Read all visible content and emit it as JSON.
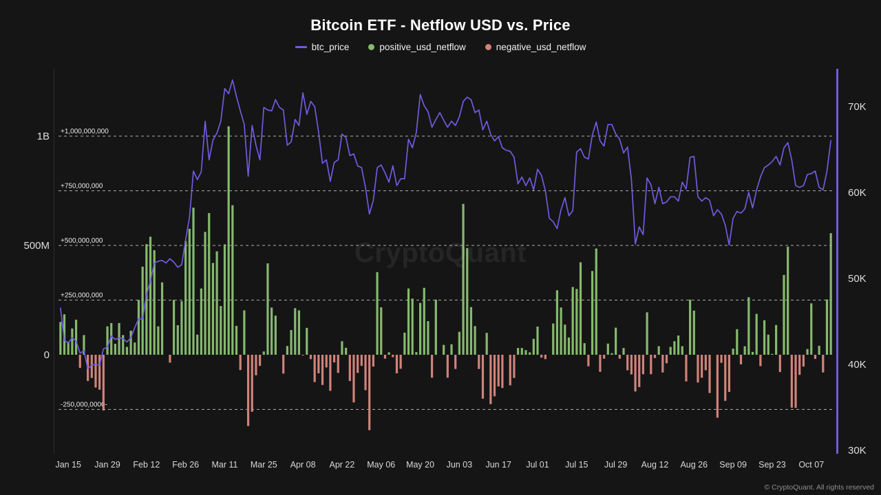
{
  "header": {
    "title": "Bitcoin ETF - Netflow USD vs. Price",
    "legend": [
      {
        "label": "btc_price",
        "color": "#6f5ce0",
        "marker": "line"
      },
      {
        "label": "positive_usd_netflow",
        "color": "#86b96e",
        "marker": "dot"
      },
      {
        "label": "negative_usd_netflow",
        "color": "#d0837a",
        "marker": "dot"
      }
    ]
  },
  "watermark": "CryptoQuant",
  "footer": {
    "copyright": "© CryptoQuant. All rights reserved"
  },
  "colors": {
    "background": "#151515",
    "price_line": "#6f5ce0",
    "positive_bar": "#86b96e",
    "negative_bar": "#d0837a",
    "grid_dash": "#e0e0e0",
    "axis_text": "#dcdcdc"
  },
  "chart_data": {
    "type": "mixed",
    "title": "Bitcoin ETF - Netflow USD vs. Price",
    "subtitle": "",
    "grid": "dashed horizontal reference lines",
    "legend_position": "top-center",
    "x_ticks": [
      {
        "i": 2,
        "label": "Jan 15"
      },
      {
        "i": 12,
        "label": "Jan 29"
      },
      {
        "i": 22,
        "label": "Feb 12"
      },
      {
        "i": 32,
        "label": "Feb 26"
      },
      {
        "i": 42,
        "label": "Mar 11"
      },
      {
        "i": 52,
        "label": "Mar 25"
      },
      {
        "i": 62,
        "label": "Apr 08"
      },
      {
        "i": 72,
        "label": "Apr 22"
      },
      {
        "i": 82,
        "label": "May 06"
      },
      {
        "i": 92,
        "label": "May 20"
      },
      {
        "i": 102,
        "label": "Jun 03"
      },
      {
        "i": 112,
        "label": "Jun 17"
      },
      {
        "i": 122,
        "label": "Jul 01"
      },
      {
        "i": 132,
        "label": "Jul 15"
      },
      {
        "i": 142,
        "label": "Jul 29"
      },
      {
        "i": 152,
        "label": "Aug 12"
      },
      {
        "i": 162,
        "label": "Aug 26"
      },
      {
        "i": 172,
        "label": "Sep 09"
      },
      {
        "i": 182,
        "label": "Sep 23"
      },
      {
        "i": 192,
        "label": "Oct 07"
      }
    ],
    "left_axis": {
      "big_labels": [
        {
          "value_m": 1000,
          "text": "1B"
        },
        {
          "value_m": 500,
          "text": "500M"
        },
        {
          "value_m": 0,
          "text": "0"
        }
      ],
      "ref_lines": [
        {
          "value_m": 1000,
          "label": "+1,000,000,000"
        },
        {
          "value_m": 750,
          "label": "+750,000,000"
        },
        {
          "value_m": 500,
          "label": "+500,000,000"
        },
        {
          "value_m": 250,
          "label": "+250,000,000"
        },
        {
          "value_m": -250,
          "label": "-250,000,0000-"
        }
      ],
      "unit": "USD netflow (millions)",
      "range_m": [
        -450,
        1310
      ]
    },
    "right_axis": {
      "ticks": [
        {
          "value_k": 70,
          "label": "70K"
        },
        {
          "value_k": 60,
          "label": "60K"
        },
        {
          "value_k": 50,
          "label": "50K"
        },
        {
          "value_k": 40,
          "label": "40K"
        },
        {
          "value_k": 30,
          "label": "30K"
        }
      ],
      "unit": "BTC price (USD)",
      "range_k": [
        29.6,
        74.4
      ]
    },
    "series": [
      {
        "name": "btc_price",
        "type": "line",
        "axis": "right",
        "color": "#6f5ce0",
        "unit": "K USD",
        "values": [
          46.6,
          42.8,
          42.5,
          43.1,
          42.7,
          41.3,
          41.6,
          39.5,
          39.9,
          40.0,
          39.9,
          41.8,
          42.0,
          43.3,
          42.9,
          43.1,
          43.0,
          42.6,
          43.1,
          44.3,
          45.3,
          45.3,
          48.1,
          49.7,
          51.8,
          52.0,
          52.1,
          51.8,
          52.3,
          51.9,
          51.3,
          51.6,
          54.5,
          57.1,
          62.5,
          61.5,
          62.4,
          68.3,
          63.8,
          66.1,
          66.9,
          68.3,
          72.1,
          71.5,
          73.1,
          71.2,
          69.5,
          67.9,
          61.9,
          67.8,
          65.5,
          63.8,
          69.9,
          69.6,
          69.5,
          70.8,
          69.9,
          69.6,
          65.5,
          65.9,
          68.5,
          67.8,
          71.6,
          69.1,
          70.6,
          70.0,
          67.1,
          63.4,
          63.8,
          61.3,
          63.5,
          63.8,
          66.8,
          66.4,
          64.3,
          64.5,
          63.1,
          62.9,
          60.6,
          57.5,
          59.1,
          62.9,
          63.2,
          62.3,
          61.2,
          63.1,
          60.8,
          61.6,
          61.6,
          66.2,
          65.2,
          67.0,
          71.4,
          70.1,
          69.4,
          67.6,
          68.5,
          69.3,
          68.4,
          67.6,
          68.3,
          67.8,
          68.8,
          70.6,
          71.1,
          70.8,
          69.3,
          69.6,
          67.3,
          68.3,
          66.8,
          66.0,
          66.5,
          65.2,
          64.9,
          64.8,
          64.1,
          61.0,
          61.8,
          60.8,
          61.7,
          60.3,
          62.7,
          62.0,
          60.2,
          57.0,
          56.6,
          55.8,
          58.0,
          59.4,
          57.3,
          57.9,
          64.7,
          65.1,
          64.1,
          63.9,
          66.7,
          68.2,
          66.0,
          65.4,
          67.9,
          67.9,
          66.8,
          66.2,
          64.6,
          65.3,
          61.5,
          54.0,
          56.0,
          55.1,
          61.7,
          60.9,
          58.7,
          60.6,
          58.7,
          58.9,
          59.5,
          59.5,
          59.0,
          61.2,
          60.4,
          64.1,
          64.2,
          59.5,
          59.0,
          59.4,
          59.1,
          57.3,
          58.0,
          57.5,
          56.2,
          53.9,
          57.0,
          57.8,
          57.6,
          58.1,
          60.0,
          58.2,
          60.3,
          61.8,
          62.9,
          63.2,
          63.6,
          64.2,
          63.2,
          65.2,
          65.8,
          63.8,
          60.8,
          60.6,
          60.8,
          62.1,
          62.2,
          62.5,
          60.6,
          60.3,
          62.5,
          66.1
        ]
      },
      {
        "name": "usd_netflow",
        "type": "bar",
        "axis": "left",
        "positive_color": "#86b96e",
        "negative_color": "#d0837a",
        "positive_name": "positive_usd_netflow",
        "negative_name": "negative_usd_netflow",
        "unit": "M USD",
        "values": [
          150,
          185,
          60,
          120,
          160,
          -60,
          90,
          -120,
          -106,
          -150,
          -160,
          -255,
          130,
          145,
          50,
          145,
          90,
          36,
          110,
          56,
          251,
          403,
          506,
          540,
          478,
          130,
          331,
          0,
          -36,
          251,
          135,
          245,
          520,
          576,
          673,
          92,
          303,
          562,
          648,
          420,
          473,
          223,
          505,
          1045,
          684,
          132,
          -70,
          203,
          -326,
          -261,
          -94,
          -51,
          15,
          418,
          216,
          179,
          0,
          -86,
          40,
          113,
          213,
          203,
          -3,
          123,
          -20,
          -125,
          -85,
          -138,
          -58,
          -165,
          -35,
          -83,
          62,
          32,
          -120,
          -218,
          -83,
          -51,
          -162,
          -345,
          -54,
          378,
          217,
          -18,
          11,
          -11,
          -85,
          -64,
          101,
          303,
          257,
          12,
          237,
          306,
          154,
          -105,
          252,
          0,
          45,
          -105,
          48,
          -65,
          105,
          690,
          488,
          218,
          131,
          -65,
          -201,
          100,
          -226,
          -190,
          -145,
          -152,
          0,
          -140,
          -106,
          31,
          31,
          21,
          11,
          73,
          129,
          -13,
          -20,
          0,
          143,
          295,
          216,
          138,
          79,
          310,
          301,
          423,
          53,
          -53,
          383,
          486,
          -78,
          -18,
          51,
          7,
          124,
          -18,
          31,
          -71,
          -90,
          -168,
          -148,
          -89,
          194,
          -89,
          -15,
          39,
          -81,
          -39,
          36,
          62,
          88,
          39,
          -122,
          252,
          202,
          -127,
          -105,
          -71,
          -175,
          0,
          -288,
          -37,
          -211,
          -170,
          28,
          117,
          -44,
          39,
          263,
          13,
          187,
          -52,
          158,
          92,
          4,
          136,
          -79,
          365,
          494,
          -242,
          -243,
          -92,
          -54,
          26,
          235,
          -19,
          41,
          -81,
          253,
          556
        ]
      }
    ]
  }
}
